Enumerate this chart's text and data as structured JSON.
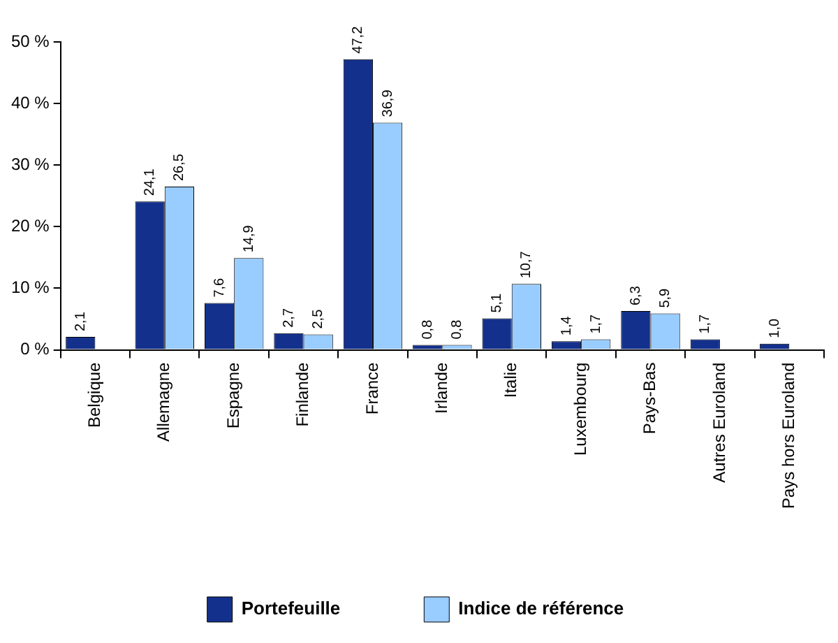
{
  "chart_data": {
    "type": "bar",
    "categories": [
      "Belgique",
      "Allemagne",
      "Espagne",
      "Finlande",
      "France",
      "Irlande",
      "Italie",
      "Luxembourg",
      "Pays-Bas",
      "Autres Euroland",
      "Pays hors Euroland"
    ],
    "series": [
      {
        "name": "Portefeuille",
        "color": "#13318c",
        "values": [
          2.1,
          24.1,
          7.6,
          2.7,
          47.2,
          0.8,
          5.1,
          1.4,
          6.3,
          1.7,
          1.0
        ],
        "value_labels": [
          "2,1",
          "24,1",
          "7,6",
          "2,7",
          "47,2",
          "0,8",
          "5,1",
          "1,4",
          "6,3",
          "1,7",
          "1,0"
        ]
      },
      {
        "name": "Indice de référence",
        "color": "#99ccff",
        "values": [
          null,
          26.5,
          14.9,
          2.5,
          36.9,
          0.8,
          10.7,
          1.7,
          5.9,
          null,
          null
        ],
        "value_labels": [
          null,
          "26,5",
          "14,9",
          "2,5",
          "36,9",
          "0,8",
          "10,7",
          "1,7",
          "5,9",
          null,
          null
        ]
      }
    ],
    "ylim": [
      0,
      50
    ],
    "yticks": [
      {
        "value": 0,
        "label": "0 %"
      },
      {
        "value": 10,
        "label": "10 %"
      },
      {
        "value": 20,
        "label": "20 %"
      },
      {
        "value": 30,
        "label": "30 %"
      },
      {
        "value": 40,
        "label": "40 %"
      },
      {
        "value": 50,
        "label": "50 %"
      }
    ],
    "grid": false,
    "legend": "bottom"
  }
}
